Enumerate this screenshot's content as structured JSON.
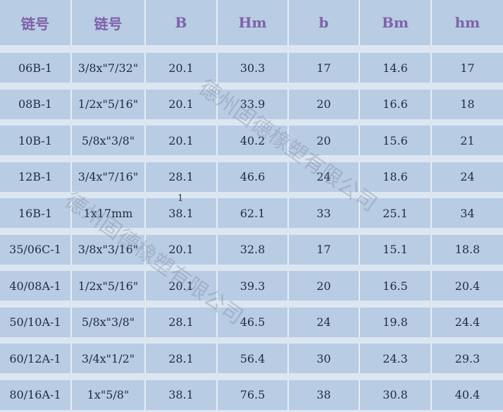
{
  "headers": [
    "链号",
    "链号",
    "B",
    "Hm",
    "b",
    "Bm",
    "hm"
  ],
  "rows": [
    [
      "06B-1",
      "3/8x\"7/32\"",
      "20.1",
      "30.3",
      "17",
      "14.6",
      "17"
    ],
    [
      "08B-1",
      "1/2x\"5/16\"",
      "20.1",
      "33.9",
      "20",
      "16.6",
      "18"
    ],
    [
      "10B-1",
      "5/8x\"3/8\"",
      "20.1",
      "40.2",
      "20",
      "15.6",
      "21"
    ],
    [
      "12B-1",
      "3/4x\"7/16\"",
      "28.1",
      "46.6",
      "24",
      "18.6",
      "24"
    ],
    [
      "16B-1",
      "1x17mm",
      "38.1",
      "62.1",
      "33",
      "25.1",
      "34"
    ],
    [
      "35/06C-1",
      "3/8x\"3/16\"",
      "20.1",
      "32.8",
      "17",
      "15.1",
      "18.8"
    ],
    [
      "40/08A-1",
      "1/2x\"5/16\"",
      "20.1",
      "39.3",
      "20",
      "16.5",
      "20.4"
    ],
    [
      "50/10A-1",
      "5/8x\"3/8\"",
      "28.1",
      "46.5",
      "24",
      "19.8",
      "24.4"
    ],
    [
      "60/12A-1",
      "3/4x\"1/2\"",
      "28.1",
      "56.4",
      "30",
      "24.3",
      "29.3"
    ],
    [
      "80/16A-1",
      "1x\"5/8\"",
      "38.1",
      "76.5",
      "38",
      "30.8",
      "40.4"
    ]
  ],
  "note": "1",
  "watermark": "德州固德橡塑有限公司"
}
